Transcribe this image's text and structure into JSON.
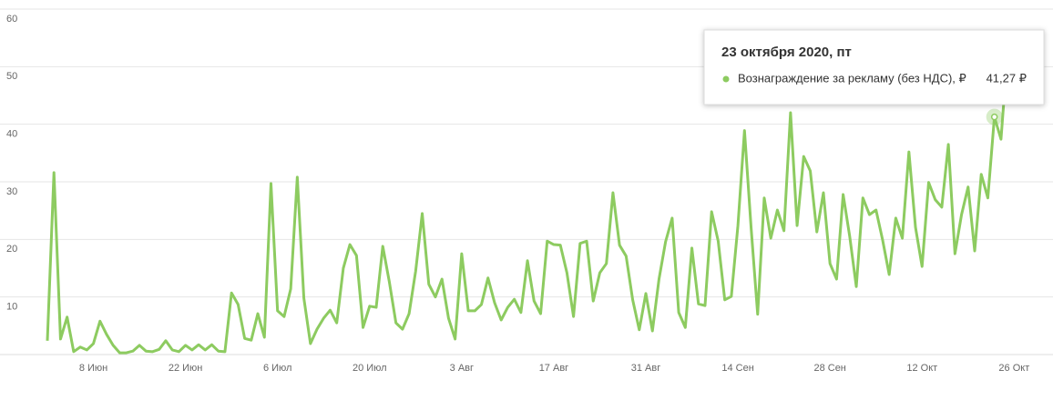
{
  "chart_data": {
    "type": "line",
    "categories": [
      null,
      null,
      null,
      null,
      null,
      null,
      null,
      "8 Июн",
      null,
      null,
      null,
      null,
      null,
      null,
      null,
      null,
      null,
      null,
      null,
      null,
      null,
      "22 Июн",
      null,
      null,
      null,
      null,
      null,
      null,
      null,
      null,
      null,
      null,
      null,
      null,
      null,
      "6 Июл",
      null,
      null,
      null,
      null,
      null,
      null,
      null,
      null,
      null,
      null,
      null,
      null,
      null,
      "20 Июл",
      null,
      null,
      null,
      null,
      null,
      null,
      null,
      null,
      null,
      null,
      null,
      null,
      null,
      "3 Авг",
      null,
      null,
      null,
      null,
      null,
      null,
      null,
      null,
      null,
      null,
      null,
      null,
      null,
      "17 Авг",
      null,
      null,
      null,
      null,
      null,
      null,
      null,
      null,
      null,
      null,
      null,
      null,
      null,
      "31 Авг",
      null,
      null,
      null,
      null,
      null,
      null,
      null,
      null,
      null,
      null,
      null,
      null,
      null,
      "14 Сен",
      null,
      null,
      null,
      null,
      null,
      null,
      null,
      null,
      null,
      null,
      null,
      null,
      null,
      "28 Сен",
      null,
      null,
      null,
      null,
      null,
      null,
      null,
      null,
      null,
      null,
      null,
      null,
      null,
      "12 Окт",
      null,
      null,
      null,
      null,
      null,
      null,
      null,
      null,
      null,
      null,
      null,
      null,
      null,
      "26 Окт"
    ],
    "series": [
      {
        "name": "Вознаграждение за рекламу (без НДС), ₽",
        "color": "#8dcb60",
        "values": [
          2.4,
          31.6,
          2.7,
          6.5,
          0.5,
          1.3,
          0.8,
          1.9,
          5.8,
          3.5,
          1.6,
          0.3,
          0.3,
          0.6,
          1.6,
          0.6,
          0.5,
          0.9,
          2.4,
          0.8,
          0.5,
          1.6,
          0.8,
          1.7,
          0.8,
          1.7,
          0.6,
          0.5,
          10.7,
          8.7,
          2.8,
          2.5,
          7.1,
          3.0,
          29.7,
          7.6,
          6.6,
          11.4,
          30.8,
          9.8,
          1.9,
          4.4,
          6.3,
          7.7,
          5.5,
          15.0,
          19.1,
          17.2,
          4.7,
          8.4,
          8.2,
          18.8,
          12.6,
          5.5,
          4.4,
          7.1,
          14.5,
          24.5,
          12.2,
          10.0,
          13.1,
          6.3,
          2.7,
          17.5,
          7.6,
          7.6,
          8.7,
          13.3,
          9.0,
          6.0,
          8.2,
          9.6,
          7.3,
          16.3,
          9.3,
          7.1,
          19.7,
          19.1,
          19.0,
          14.2,
          6.6,
          19.3,
          19.7,
          9.3,
          14.2,
          15.8,
          28.1,
          19.0,
          17.1,
          9.5,
          4.3,
          10.6,
          4.1,
          13.1,
          19.6,
          23.7,
          7.3,
          4.7,
          18.5,
          8.8,
          8.5,
          24.8,
          19.7,
          9.5,
          10.1,
          22.4,
          38.9,
          22.1,
          7.0,
          27.2,
          20.2,
          25.1,
          21.5,
          42.0,
          22.4,
          34.4,
          31.9,
          21.3,
          28.1,
          15.8,
          13.1,
          27.8,
          20.5,
          11.8,
          27.2,
          24.3,
          25.1,
          19.9,
          13.9,
          23.7,
          20.2,
          35.2,
          22.1,
          15.3,
          29.9,
          26.9,
          25.6,
          36.5,
          17.5,
          24.3,
          29.1,
          18.0,
          31.3,
          27.2,
          41.27,
          37.4,
          52.6,
          null
        ],
        "value_labels": [
          null,
          null,
          null,
          null,
          null,
          null,
          null,
          null,
          null,
          null,
          null,
          null,
          null,
          null,
          null,
          null,
          null,
          null,
          null,
          null,
          null,
          null,
          null,
          null,
          null,
          null,
          null,
          null,
          null,
          null,
          null,
          null,
          null,
          null,
          null,
          null,
          null,
          null,
          null,
          null,
          null,
          null,
          null,
          null,
          null,
          null,
          null,
          null,
          null,
          null,
          null,
          null,
          null,
          null,
          null,
          null,
          null,
          null,
          null,
          null,
          null,
          null,
          null,
          null,
          null,
          null,
          null,
          null,
          null,
          null,
          null,
          null,
          null,
          null,
          null,
          null,
          null,
          null,
          null,
          null,
          null,
          null,
          null,
          null,
          null,
          null,
          null,
          null,
          null,
          null,
          null,
          null,
          null,
          null,
          null,
          null,
          null,
          null,
          null,
          null,
          null,
          null,
          null,
          null,
          null,
          null,
          null,
          null,
          null,
          null,
          null,
          null,
          null,
          null,
          null,
          null,
          null,
          null,
          null,
          null,
          null,
          null,
          null,
          null,
          null,
          null,
          null,
          null,
          null,
          null,
          null,
          null,
          null,
          null,
          null,
          null,
          null,
          null,
          null,
          null,
          null,
          null,
          null,
          null,
          "41,27 ₽",
          null,
          null,
          null
        ]
      }
    ],
    "tooltip_title": "23 октября 2020, пт",
    "ylim": [
      0,
      60
    ],
    "yticks": [
      10,
      20,
      30,
      40,
      50,
      60
    ],
    "grid": true
  }
}
